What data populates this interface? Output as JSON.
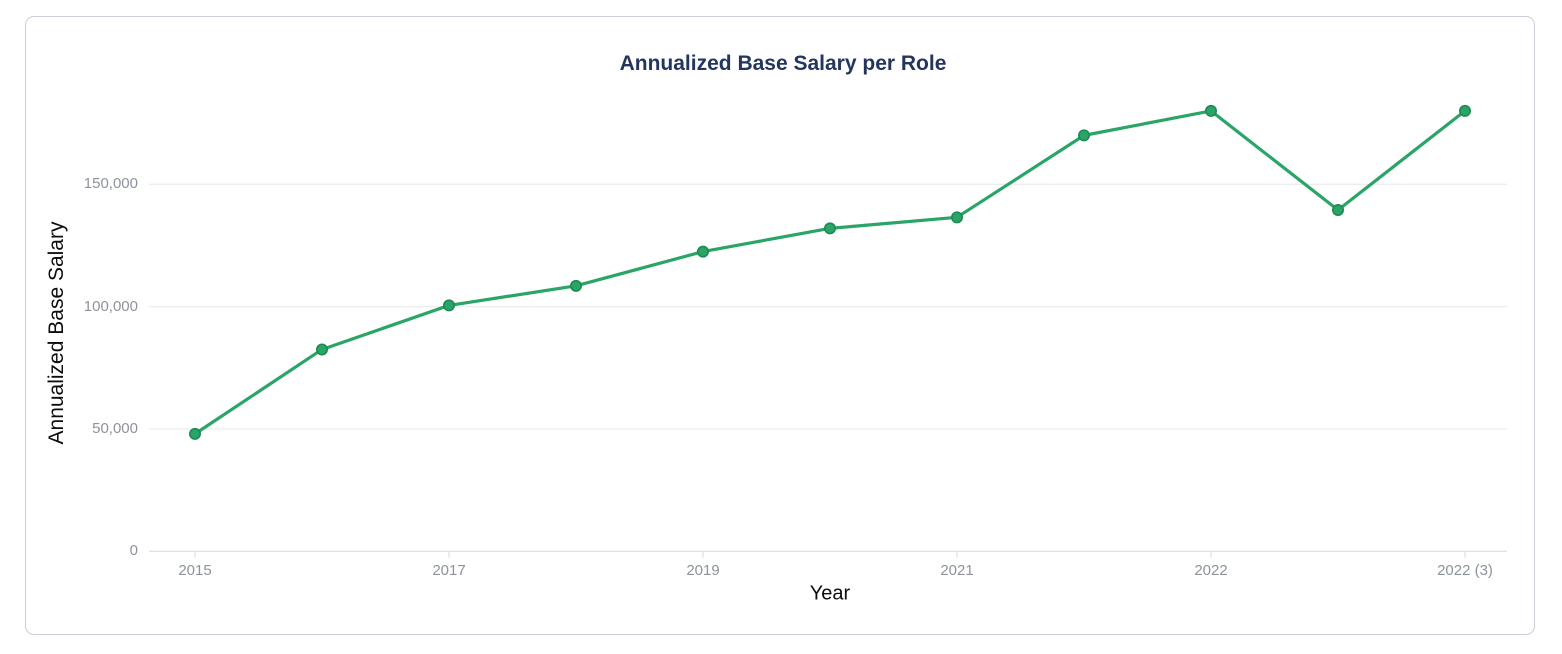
{
  "chart": {
    "title": "Annualized Base Salary per Role"
  },
  "chart_data": {
    "type": "line",
    "title": "Annualized Base Salary per Role",
    "xlabel": "Year",
    "ylabel": "Annualized Base Salary",
    "series": [
      {
        "name": "Annualized Base Salary",
        "values": [
          48000,
          82500,
          100500,
          108500,
          122500,
          132000,
          136500,
          170000,
          180000,
          139500,
          180000
        ]
      }
    ],
    "x_tick_labels": [
      {
        "index": 0,
        "label": "2015"
      },
      {
        "index": 2,
        "label": "2017"
      },
      {
        "index": 4,
        "label": "2019"
      },
      {
        "index": 6,
        "label": "2021"
      },
      {
        "index": 8,
        "label": "2022"
      },
      {
        "index": 10,
        "label": "2022 (3)"
      }
    ],
    "y_ticks": [
      {
        "value": 0,
        "label": "0"
      },
      {
        "value": 50000,
        "label": "50,000"
      },
      {
        "value": 100000,
        "label": "100,000"
      },
      {
        "value": 150000,
        "label": "150,000"
      }
    ],
    "ylim": [
      0,
      186000
    ],
    "grid": true,
    "legend_position": "none",
    "colors": {
      "line": "#2aa567",
      "marker_fill": "#2aa567",
      "marker_stroke": "#1d8a53",
      "gridline": "#ededf0",
      "axis_line": "#e2e3e8",
      "tick_text": "#8d929c",
      "title_text": "#24355f",
      "axis_name_text": "#0c0d0e",
      "card_border": "#c9ced8"
    }
  }
}
